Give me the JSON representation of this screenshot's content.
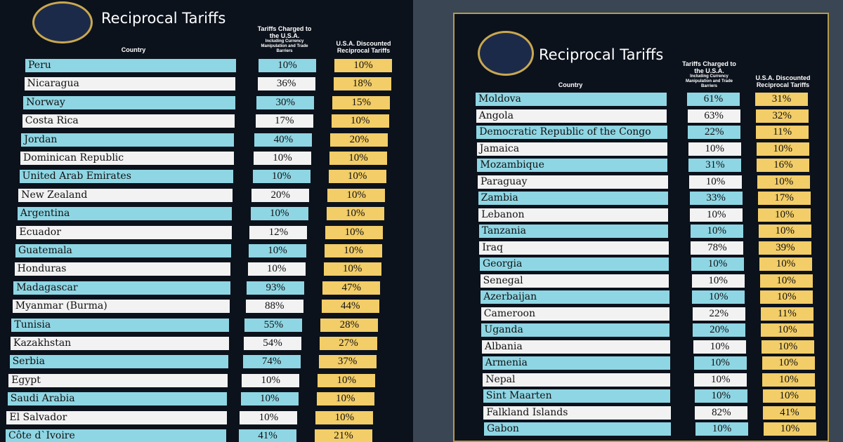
{
  "boards": [
    {
      "title": "Reciprocal Tariffs",
      "columns": [
        "Country",
        "Tariffs Charged to the U.S.A.",
        "Including Currency Manipulation and Trade Barriers",
        "U.S.A. Discounted Reciprocal Tariffs"
      ],
      "rows": [
        [
          "Peru",
          "10%",
          "10%"
        ],
        [
          "Nicaragua",
          "36%",
          "18%"
        ],
        [
          "Norway",
          "30%",
          "15%"
        ],
        [
          "Costa Rica",
          "17%",
          "10%"
        ],
        [
          "Jordan",
          "40%",
          "20%"
        ],
        [
          "Dominican Republic",
          "10%",
          "10%"
        ],
        [
          "United Arab Emirates",
          "10%",
          "10%"
        ],
        [
          "New Zealand",
          "20%",
          "10%"
        ],
        [
          "Argentina",
          "10%",
          "10%"
        ],
        [
          "Ecuador",
          "12%",
          "10%"
        ],
        [
          "Guatemala",
          "10%",
          "10%"
        ],
        [
          "Honduras",
          "10%",
          "10%"
        ],
        [
          "Madagascar",
          "93%",
          "47%"
        ],
        [
          "Myanmar (Burma)",
          "88%",
          "44%"
        ],
        [
          "Tunisia",
          "55%",
          "28%"
        ],
        [
          "Kazakhstan",
          "54%",
          "27%"
        ],
        [
          "Serbia",
          "74%",
          "37%"
        ],
        [
          "Egypt",
          "10%",
          "10%"
        ],
        [
          "Saudi Arabia",
          "10%",
          "10%"
        ],
        [
          "El Salvador",
          "10%",
          "10%"
        ],
        [
          "Côte d`Ivoire",
          "41%",
          "21%"
        ]
      ]
    },
    {
      "title": "Reciprocal Tariffs",
      "columns": [
        "Country",
        "Tariffs Charged to the U.S.A.",
        "Including Currency Manipulation and Trade Barriers",
        "U.S.A. Discounted Reciprocal Tariffs"
      ],
      "rows": [
        [
          "Moldova",
          "61%",
          "31%"
        ],
        [
          "Angola",
          "63%",
          "32%"
        ],
        [
          "Democratic Republic of the Congo",
          "22%",
          "11%"
        ],
        [
          "Jamaica",
          "10%",
          "10%"
        ],
        [
          "Mozambique",
          "31%",
          "16%"
        ],
        [
          "Paraguay",
          "10%",
          "10%"
        ],
        [
          "Zambia",
          "33%",
          "17%"
        ],
        [
          "Lebanon",
          "10%",
          "10%"
        ],
        [
          "Tanzania",
          "10%",
          "10%"
        ],
        [
          "Iraq",
          "78%",
          "39%"
        ],
        [
          "Georgia",
          "10%",
          "10%"
        ],
        [
          "Senegal",
          "10%",
          "10%"
        ],
        [
          "Azerbaijan",
          "10%",
          "10%"
        ],
        [
          "Cameroon",
          "22%",
          "11%"
        ],
        [
          "Uganda",
          "20%",
          "10%"
        ],
        [
          "Albania",
          "10%",
          "10%"
        ],
        [
          "Armenia",
          "10%",
          "10%"
        ],
        [
          "Nepal",
          "10%",
          "10%"
        ],
        [
          "Sint Maarten",
          "10%",
          "10%"
        ],
        [
          "Falkland Islands",
          "82%",
          "41%"
        ],
        [
          "Gabon",
          "10%",
          "10%"
        ]
      ]
    }
  ]
}
